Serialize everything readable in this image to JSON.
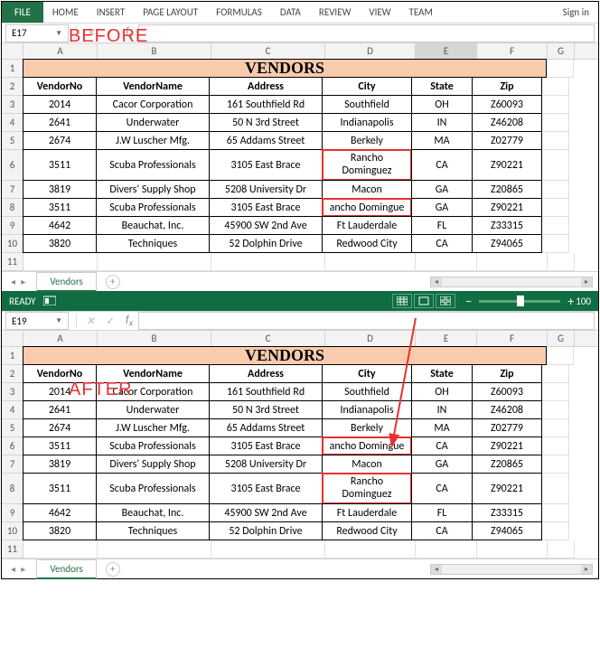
{
  "ribbon": {
    "file": "FILE",
    "home": "HOME",
    "insert": "INSERT",
    "pagelayout": "PAGE LAYOUT",
    "formulas": "FORMULAS",
    "data": "DATA",
    "review": "REVIEW",
    "view": "VIEW",
    "team": "TEAM",
    "signin": "Sign in"
  },
  "labels": {
    "before": "BEFORE",
    "after": "AFTER"
  },
  "before": {
    "namebox": "E17",
    "cols": [
      "A",
      "B",
      "C",
      "D",
      "E",
      "F",
      "G"
    ],
    "selcol": "E",
    "title": "VENDORS",
    "headers": [
      "VendorNo",
      "VendorName",
      "Address",
      "City",
      "State",
      "Zip"
    ],
    "rows": [
      {
        "n": "3",
        "d": [
          "2014",
          "Cacor Corporation",
          "161 Southfield Rd",
          "Southfield",
          "OH",
          "Z60093"
        ]
      },
      {
        "n": "4",
        "d": [
          "2641",
          "Underwater",
          "50 N 3rd Street",
          "Indianapolis",
          "IN",
          "Z46208"
        ]
      },
      {
        "n": "5",
        "d": [
          "2674",
          "J.W Luscher Mfg.",
          "65 Addams Street",
          "Berkely",
          "MA",
          "Z02779"
        ]
      },
      {
        "n": "6",
        "d": [
          "3511",
          "Scuba Professionals",
          "3105 East Brace",
          "Rancho Dominguez",
          "CA",
          "Z90221"
        ],
        "tall": true,
        "redD": true,
        "wrap": true
      },
      {
        "n": "7",
        "d": [
          "3819",
          "Divers' Supply Shop",
          "5208 University Dr",
          "Macon",
          "GA",
          "Z20865"
        ]
      },
      {
        "n": "8",
        "d": [
          "3511",
          "Scuba Professionals",
          "3105 East Brace",
          "ancho Domingue",
          "GA",
          "Z90221"
        ],
        "redD": true
      },
      {
        "n": "9",
        "d": [
          "4642",
          "Beauchat, Inc.",
          "45900 SW 2nd Ave",
          "Ft Lauderdale",
          "FL",
          "Z33315"
        ]
      },
      {
        "n": "10",
        "d": [
          "3820",
          "Techniques",
          "52 Dolphin Drive",
          "Redwood City",
          "CA",
          "Z94065"
        ]
      }
    ],
    "sheet": "Vendors",
    "status": "READY",
    "zoom": "100"
  },
  "after": {
    "namebox": "E19",
    "cols": [
      "A",
      "B",
      "C",
      "D",
      "E",
      "F",
      "G"
    ],
    "title": "VENDORS",
    "headers": [
      "VendorNo",
      "VendorName",
      "Address",
      "City",
      "State",
      "Zip"
    ],
    "rows": [
      {
        "n": "3",
        "d": [
          "2014",
          "Cacor Corporation",
          "161 Southfield Rd",
          "Southfield",
          "OH",
          "Z60093"
        ]
      },
      {
        "n": "4",
        "d": [
          "2641",
          "Underwater",
          "50 N 3rd Street",
          "Indianapolis",
          "IN",
          "Z46208"
        ]
      },
      {
        "n": "5",
        "d": [
          "2674",
          "J.W Luscher Mfg.",
          "65 Addams Street",
          "Berkely",
          "MA",
          "Z02779"
        ]
      },
      {
        "n": "6",
        "d": [
          "3511",
          "Scuba Professionals",
          "3105 East Brace",
          "ancho Domingue",
          "CA",
          "Z90221"
        ],
        "redD": true
      },
      {
        "n": "7",
        "d": [
          "3819",
          "Divers' Supply Shop",
          "5208 University Dr",
          "Macon",
          "GA",
          "Z20865"
        ]
      },
      {
        "n": "8",
        "d": [
          "3511",
          "Scuba Professionals",
          "3105 East Brace",
          "Rancho Dominguez",
          "CA",
          "Z90221"
        ],
        "tall": true,
        "redD": true,
        "wrap": true
      },
      {
        "n": "9",
        "d": [
          "4642",
          "Beauchat, Inc.",
          "45900 SW 2nd Ave",
          "Ft Lauderdale",
          "FL",
          "Z33315"
        ]
      },
      {
        "n": "10",
        "d": [
          "3820",
          "Techniques",
          "52 Dolphin Drive",
          "Redwood City",
          "CA",
          "Z94065"
        ]
      }
    ],
    "sheet": "Vendors"
  },
  "colors": {
    "ribbon_green": "#217346",
    "status_green": "#0f6d41",
    "title_bg": "#f8cbad",
    "red": "#e83030"
  }
}
